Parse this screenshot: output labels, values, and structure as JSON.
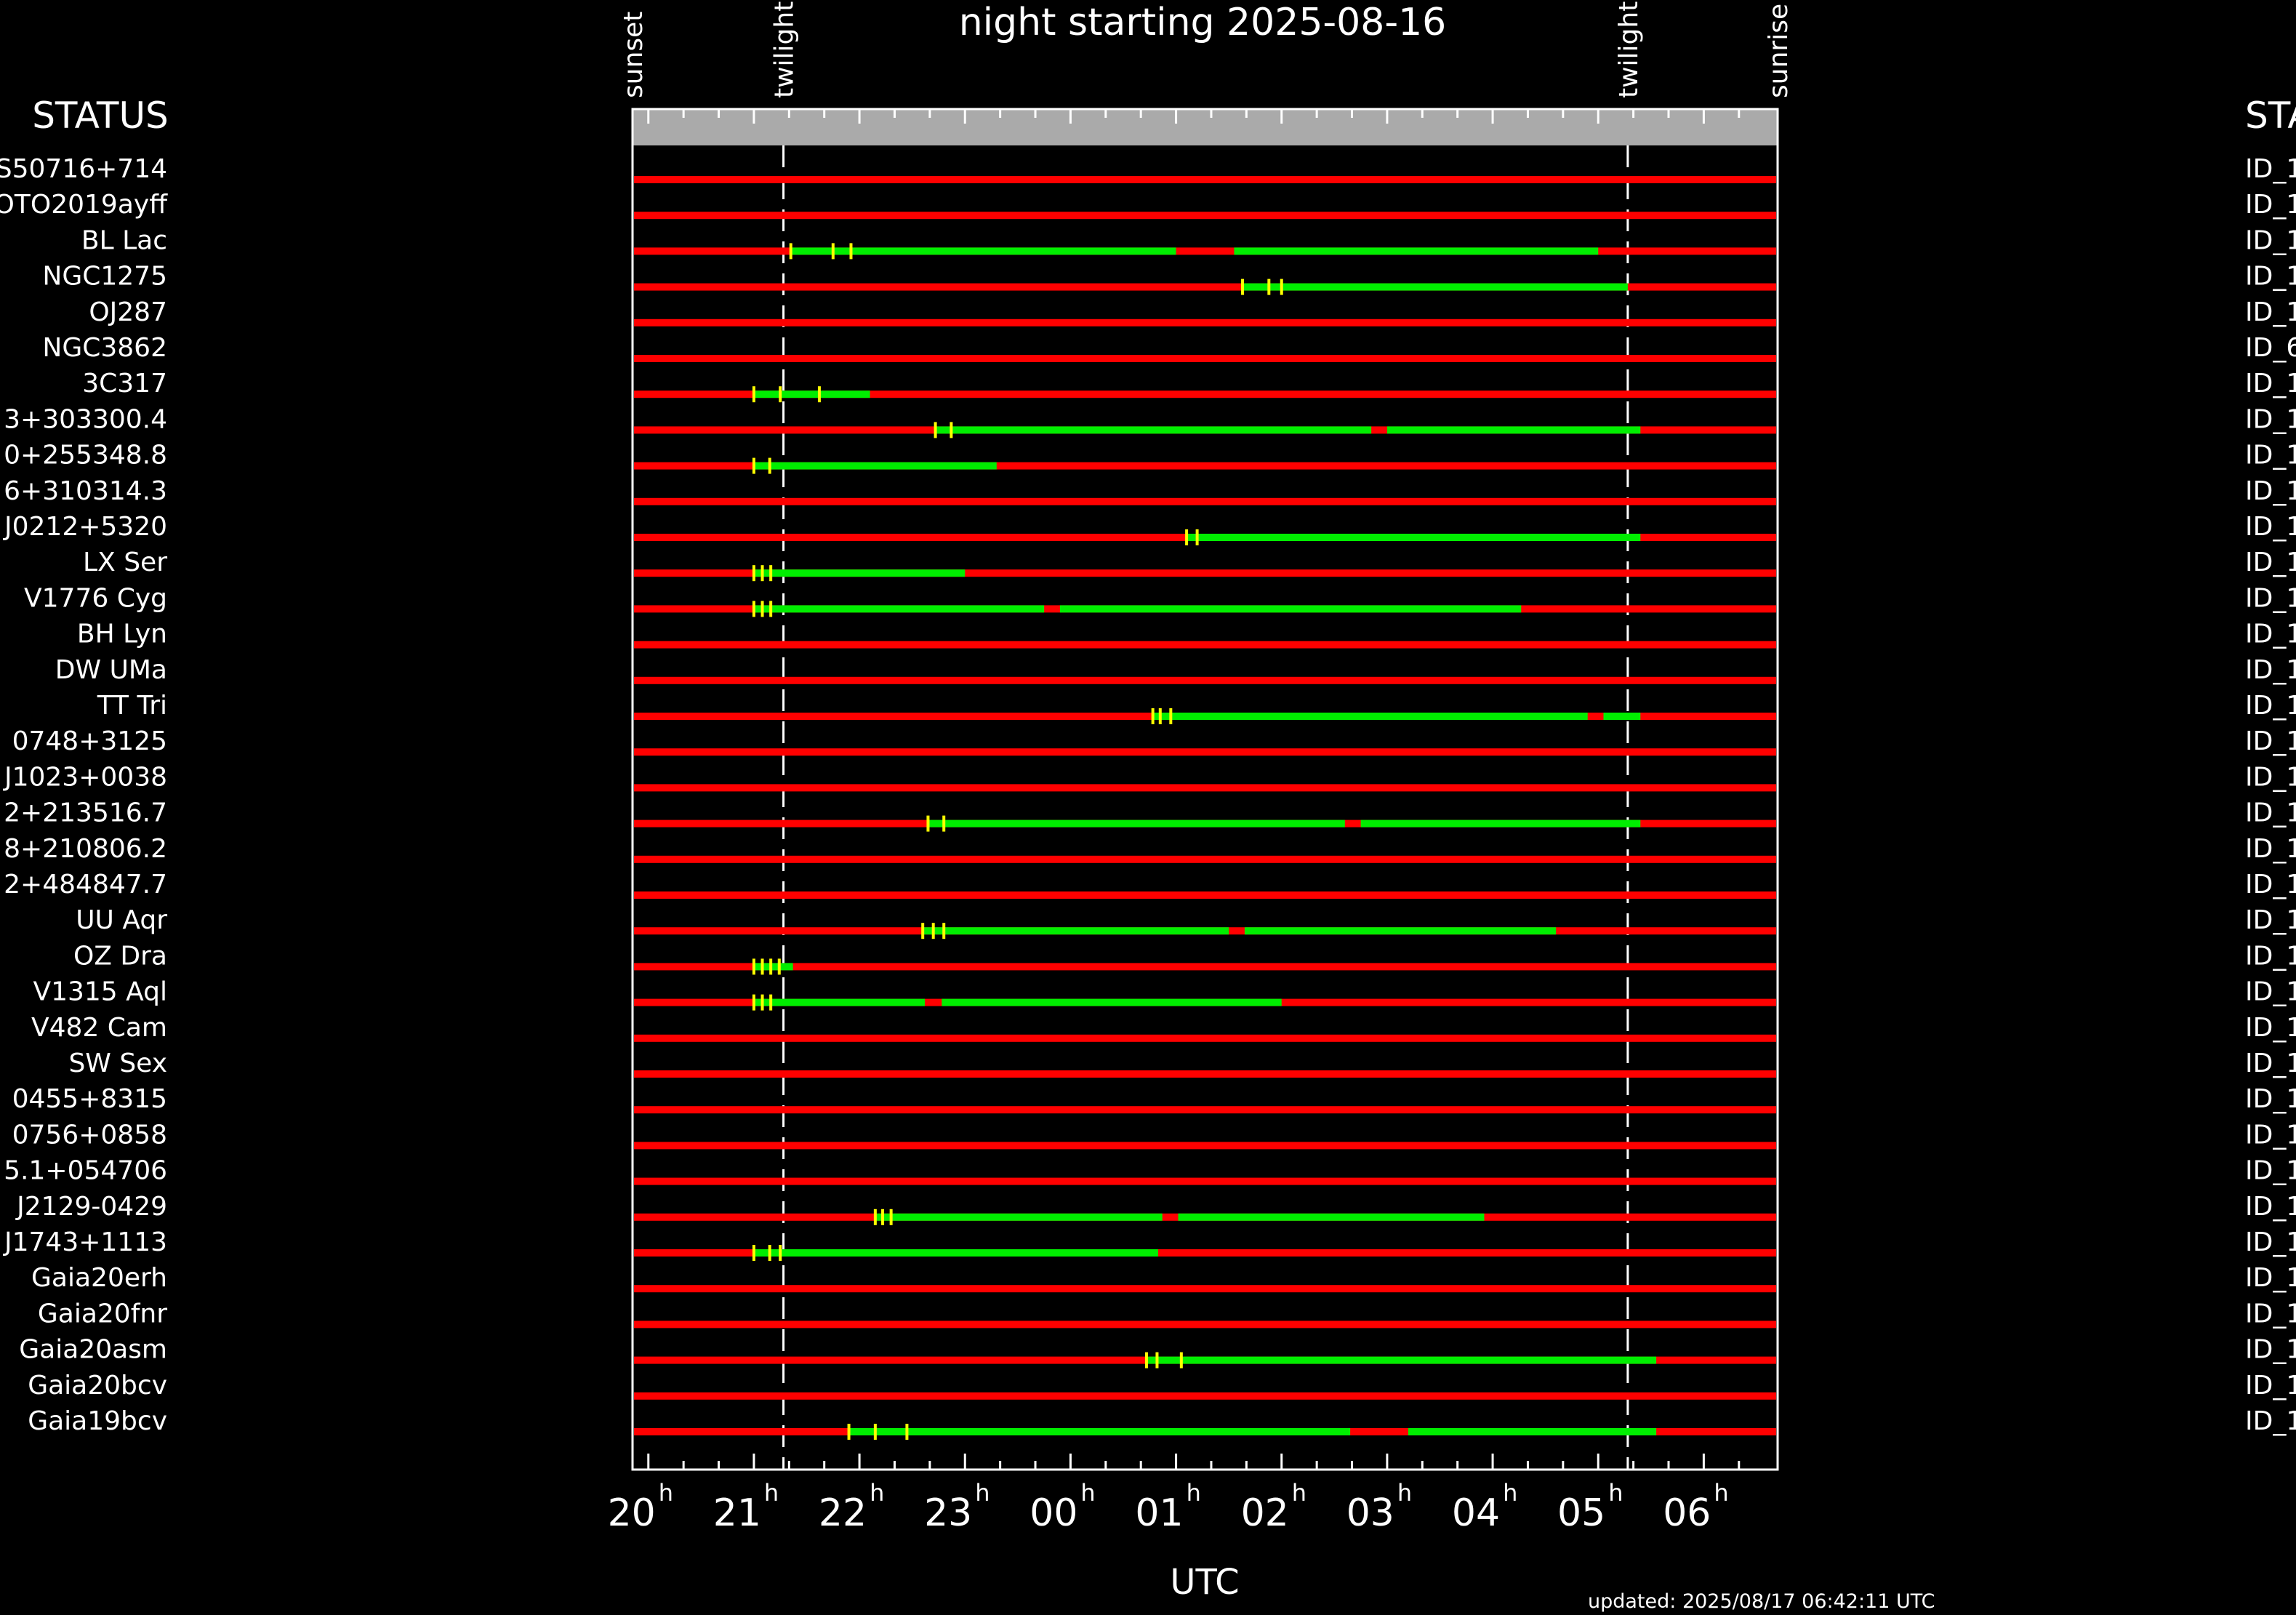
{
  "page": {
    "title": "night starting 2025-08-16",
    "left_header": "STATUS",
    "right_header": "STA",
    "updated": "updated: 2025/08/17 06:42:11 UTC"
  },
  "colors": {
    "background": "#000000",
    "not_observable": "#ff0000",
    "observable": "#00ee00",
    "marker": "#ffff00",
    "header_band": "#aaaaaa",
    "axis": "#ffffff"
  },
  "chart_data": {
    "type": "gantt",
    "title": "night starting 2025-08-16",
    "xlabel": "UTC",
    "x_unit": "hours UTC (values above 24 are after midnight)",
    "xlim": [
      19.85,
      30.7
    ],
    "ticks": [
      {
        "value": 20,
        "label": "20",
        "sup": "h"
      },
      {
        "value": 21,
        "label": "21",
        "sup": "h"
      },
      {
        "value": 22,
        "label": "22",
        "sup": "h"
      },
      {
        "value": 23,
        "label": "23",
        "sup": "h"
      },
      {
        "value": 24,
        "label": "00",
        "sup": "h"
      },
      {
        "value": 25,
        "label": "01",
        "sup": "h"
      },
      {
        "value": 26,
        "label": "02",
        "sup": "h"
      },
      {
        "value": 27,
        "label": "03",
        "sup": "h"
      },
      {
        "value": 28,
        "label": "04",
        "sup": "h"
      },
      {
        "value": 29,
        "label": "05",
        "sup": "h"
      },
      {
        "value": 30,
        "label": "06",
        "sup": "h"
      }
    ],
    "events": [
      {
        "label": "sunset",
        "x": 19.85,
        "dashed": false
      },
      {
        "label": "twilight",
        "x": 21.28,
        "dashed": true
      },
      {
        "label": "twilight",
        "x": 29.28,
        "dashed": true
      },
      {
        "label": "sunrise",
        "x": 30.7,
        "dashed": false
      }
    ],
    "rows": [
      {
        "name": "S50716+714",
        "id": "ID_1",
        "green": [],
        "markers": []
      },
      {
        "name": "OTO2019ayff",
        "id": "ID_1",
        "green": [],
        "markers": []
      },
      {
        "name": "BL Lac",
        "id": "ID_1",
        "green": [
          [
            21.35,
            25.0
          ],
          [
            25.55,
            29.0
          ]
        ],
        "markers": [
          21.35,
          21.75,
          21.92
        ]
      },
      {
        "name": "NGC1275",
        "id": "ID_1",
        "green": [
          [
            25.63,
            29.28
          ]
        ],
        "markers": [
          25.63,
          25.88,
          26.0
        ]
      },
      {
        "name": "OJ287",
        "id": "ID_1",
        "green": [],
        "markers": []
      },
      {
        "name": "NGC3862",
        "id": "ID_6",
        "green": [],
        "markers": []
      },
      {
        "name": "3C317",
        "id": "ID_1",
        "green": [
          [
            21.0,
            22.1
          ]
        ],
        "markers": [
          21.0,
          21.25,
          21.62
        ]
      },
      {
        "name": "3+303300.4",
        "id": "ID_1",
        "green": [
          [
            22.72,
            26.85
          ],
          [
            27.0,
            29.4
          ]
        ],
        "markers": [
          22.72,
          22.87
        ]
      },
      {
        "name": "0+255348.8",
        "id": "ID_1",
        "green": [
          [
            21.0,
            23.3
          ]
        ],
        "markers": [
          21.0,
          21.15
        ]
      },
      {
        "name": "6+310314.3",
        "id": "ID_1",
        "green": [],
        "markers": []
      },
      {
        "name": "J0212+5320",
        "id": "ID_1",
        "green": [
          [
            25.1,
            29.4
          ]
        ],
        "markers": [
          25.1,
          25.2
        ]
      },
      {
        "name": "LX Ser",
        "id": "ID_1",
        "green": [
          [
            21.0,
            23.0
          ]
        ],
        "markers": [
          21.0,
          21.08,
          21.16
        ]
      },
      {
        "name": "V1776 Cyg",
        "id": "ID_1",
        "green": [
          [
            21.0,
            23.75
          ],
          [
            23.9,
            28.27
          ]
        ],
        "markers": [
          21.0,
          21.08,
          21.16
        ]
      },
      {
        "name": "BH Lyn",
        "id": "ID_1",
        "green": [],
        "markers": []
      },
      {
        "name": "DW UMa",
        "id": "ID_1",
        "green": [],
        "markers": []
      },
      {
        "name": "TT Tri",
        "id": "ID_1",
        "green": [
          [
            24.78,
            28.9
          ],
          [
            29.05,
            29.4
          ]
        ],
        "markers": [
          24.78,
          24.85,
          24.95
        ]
      },
      {
        "name": "0748+3125",
        "id": "ID_1",
        "green": [],
        "markers": []
      },
      {
        "name": "J1023+0038",
        "id": "ID_1",
        "green": [],
        "markers": []
      },
      {
        "name": "2+213516.7",
        "id": "ID_1",
        "green": [
          [
            22.65,
            26.6
          ],
          [
            26.75,
            29.4
          ]
        ],
        "markers": [
          22.65,
          22.8
        ]
      },
      {
        "name": "8+210806.2",
        "id": "ID_1",
        "green": [],
        "markers": []
      },
      {
        "name": "2+484847.7",
        "id": "ID_1",
        "green": [],
        "markers": []
      },
      {
        "name": "UU Aqr",
        "id": "ID_1",
        "green": [
          [
            22.6,
            25.5
          ],
          [
            25.65,
            28.6
          ]
        ],
        "markers": [
          22.6,
          22.7,
          22.8
        ]
      },
      {
        "name": "OZ Dra",
        "id": "ID_1",
        "green": [
          [
            21.0,
            21.37
          ]
        ],
        "markers": [
          21.0,
          21.08,
          21.16,
          21.24
        ]
      },
      {
        "name": "V1315 Aql",
        "id": "ID_1",
        "green": [
          [
            21.0,
            22.62
          ],
          [
            22.78,
            26.0
          ]
        ],
        "markers": [
          21.0,
          21.08,
          21.16
        ]
      },
      {
        "name": "V482 Cam",
        "id": "ID_1",
        "green": [],
        "markers": []
      },
      {
        "name": "SW Sex",
        "id": "ID_1",
        "green": [],
        "markers": []
      },
      {
        "name": "0455+8315",
        "id": "ID_1",
        "green": [],
        "markers": []
      },
      {
        "name": "0756+0858",
        "id": "ID_1",
        "green": [],
        "markers": []
      },
      {
        "name": "5.1+054706",
        "id": "ID_1",
        "green": [],
        "markers": []
      },
      {
        "name": "J2129-0429",
        "id": "ID_1",
        "green": [
          [
            22.15,
            24.87
          ],
          [
            25.02,
            27.92
          ]
        ],
        "markers": [
          22.15,
          22.22,
          22.3
        ]
      },
      {
        "name": "J1743+1113",
        "id": "ID_1",
        "green": [
          [
            21.0,
            24.83
          ]
        ],
        "markers": [
          21.0,
          21.15,
          21.25
        ]
      },
      {
        "name": "Gaia20erh",
        "id": "ID_1",
        "green": [],
        "markers": []
      },
      {
        "name": "Gaia20fnr",
        "id": "ID_1",
        "green": [],
        "markers": []
      },
      {
        "name": "Gaia20asm",
        "id": "ID_1",
        "green": [
          [
            24.72,
            29.55
          ]
        ],
        "markers": [
          24.72,
          24.82,
          25.05
        ]
      },
      {
        "name": "Gaia20bcv",
        "id": "ID_1",
        "green": [],
        "markers": []
      },
      {
        "name": "Gaia19bcv",
        "id": "ID_1",
        "green": [
          [
            21.9,
            26.65
          ],
          [
            27.2,
            29.55
          ]
        ],
        "markers": [
          21.9,
          22.15,
          22.45
        ]
      }
    ]
  }
}
